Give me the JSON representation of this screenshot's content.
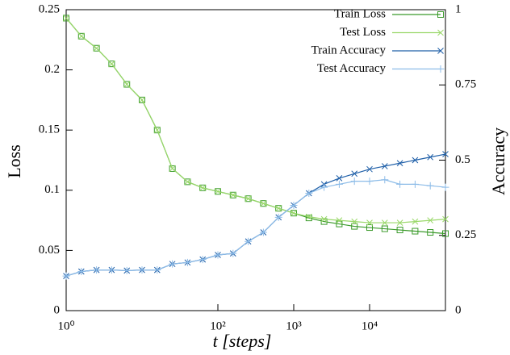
{
  "chart_data": {
    "type": "line",
    "xlabel": "t [steps]",
    "ylabel": "Loss",
    "y2label": "Accuracy",
    "xscale": "log",
    "x": [
      1,
      1.585,
      2.512,
      3.981,
      6.31,
      10,
      15.85,
      25.12,
      39.81,
      63.1,
      100,
      158.5,
      251.2,
      398.1,
      631,
      1000,
      1585,
      2512,
      3981,
      6310,
      10000,
      15850,
      25120,
      39810,
      63100,
      100000
    ],
    "xlim": [
      1,
      100000
    ],
    "xticks": [
      {
        "value": 1,
        "label": "10⁰"
      },
      {
        "value": 100,
        "label": "10²"
      },
      {
        "value": 1000,
        "label": "10³"
      },
      {
        "value": 10000,
        "label": "10⁴"
      }
    ],
    "ylim": [
      0,
      0.25
    ],
    "yticks": [
      0,
      0.05,
      0.1,
      0.15,
      0.2,
      0.25
    ],
    "y2lim": [
      0,
      1
    ],
    "y2ticks": [
      0,
      0.25,
      0.5,
      0.75,
      1
    ],
    "legend": "upper right",
    "series": [
      {
        "name": "Train Loss",
        "color": "#3a9a2a",
        "marker": "square",
        "values": [
          0.243,
          0.228,
          0.218,
          0.205,
          0.188,
          0.175,
          0.15,
          0.118,
          0.107,
          0.102,
          0.099,
          0.096,
          0.093,
          0.089,
          0.085,
          0.081,
          0.077,
          0.074,
          0.072,
          0.07,
          0.069,
          0.068,
          0.067,
          0.066,
          0.065,
          0.064
        ]
      },
      {
        "name": "Test Loss",
        "color": "#9ad86a",
        "marker": "x",
        "values": [
          0.243,
          0.228,
          0.218,
          0.205,
          0.188,
          0.175,
          0.15,
          0.118,
          0.107,
          0.102,
          0.099,
          0.096,
          0.093,
          0.089,
          0.085,
          0.081,
          0.078,
          0.076,
          0.075,
          0.074,
          0.073,
          0.073,
          0.073,
          0.074,
          0.075,
          0.076
        ]
      },
      {
        "name": "Train Accuracy",
        "color": "#1f5fa8",
        "marker": "x",
        "axis": "y2",
        "values": [
          0.115,
          0.13,
          0.135,
          0.135,
          0.133,
          0.135,
          0.135,
          0.155,
          0.16,
          0.17,
          0.185,
          0.19,
          0.23,
          0.26,
          0.31,
          0.35,
          0.39,
          0.42,
          0.44,
          0.455,
          0.47,
          0.48,
          0.49,
          0.5,
          0.51,
          0.52
        ]
      },
      {
        "name": "Test Accuracy",
        "color": "#8dbce8",
        "marker": "plus",
        "axis": "y2",
        "values": [
          0.115,
          0.13,
          0.135,
          0.135,
          0.133,
          0.135,
          0.135,
          0.155,
          0.16,
          0.17,
          0.185,
          0.19,
          0.23,
          0.26,
          0.31,
          0.35,
          0.39,
          0.41,
          0.42,
          0.43,
          0.43,
          0.435,
          0.42,
          0.42,
          0.415,
          0.41
        ]
      }
    ]
  }
}
